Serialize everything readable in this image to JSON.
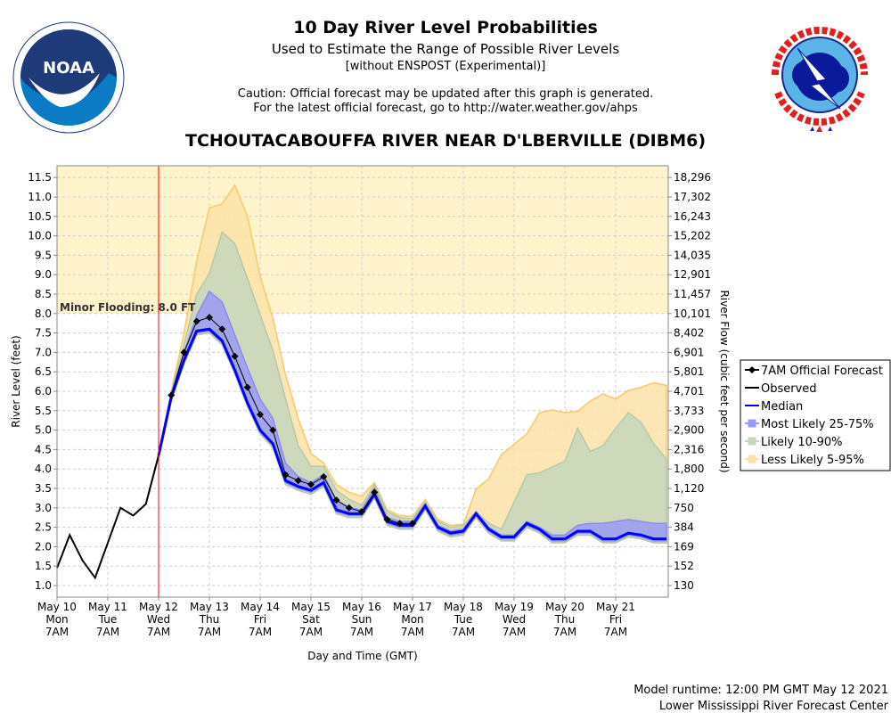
{
  "header": {
    "title": "10 Day River Level Probabilities",
    "subtitle": "Used to Estimate the Range of Possible River Levels",
    "subtitle2": "[without ENSPOST (Experimental)]",
    "caution1": "Caution: Official forecast may be updated after this graph is generated.",
    "caution2": "For the latest official forecast, go to http://water.weather.gov/ahps",
    "station": "TCHOUTACABOUFFA RIVER NEAR D'LBERVILLE (DIBM6)"
  },
  "logos": {
    "noaa": {
      "text": "NOAA",
      "ring_text": "NATIONAL OCEANIC AND ATMOSPHERIC ADMINISTRATION · U.S. DEPARTMENT OF COMMERCE"
    },
    "nws": {
      "ring_text": "NATIONAL WEATHER SERVICE"
    }
  },
  "footer": {
    "runtime": "Model runtime: 12:00 PM GMT May 12 2021",
    "center": "Lower Mississippi River Forecast Center"
  },
  "chart_data": {
    "type": "area",
    "title": "10 Day River Level Probabilities",
    "xlabel": "Day and Time (GMT)",
    "ylabel": "River Level (feet)",
    "y2label": "River Flow (cubic feet per second)",
    "ylim": [
      0.7,
      11.8
    ],
    "xlim": [
      "2021-05-10T07",
      "2021-05-22T07"
    ],
    "grid": true,
    "legend_placement": "right",
    "yticks": [
      "1.0",
      "1.5",
      "2.0",
      "2.5",
      "3.0",
      "3.5",
      "4.0",
      "4.5",
      "5.0",
      "5.5",
      "6.0",
      "6.5",
      "7.0",
      "7.5",
      "8.0",
      "8.5",
      "9.0",
      "9.5",
      "10.0",
      "10.5",
      "11.0",
      "11.5"
    ],
    "y2ticks": [
      "130",
      "152",
      "169",
      "384",
      "750",
      "1,120",
      "1,800",
      "2,316",
      "2,900",
      "3,733",
      "4,701",
      "5,801",
      "6,901",
      "8,402",
      "10,101",
      "11,457",
      "12,901",
      "14,035",
      "15,202",
      "16,243",
      "17,302",
      "18,296"
    ],
    "xticks": [
      {
        "date": "May 10",
        "day": "Mon",
        "time": "7AM"
      },
      {
        "date": "May 11",
        "day": "Tue",
        "time": "7AM"
      },
      {
        "date": "May 12",
        "day": "Wed",
        "time": "7AM"
      },
      {
        "date": "May 13",
        "day": "Thu",
        "time": "7AM"
      },
      {
        "date": "May 14",
        "day": "Fri",
        "time": "7AM"
      },
      {
        "date": "May 15",
        "day": "Sat",
        "time": "7AM"
      },
      {
        "date": "May 16",
        "day": "Sun",
        "time": "7AM"
      },
      {
        "date": "May 17",
        "day": "Mon",
        "time": "7AM"
      },
      {
        "date": "May 18",
        "day": "Tue",
        "time": "7AM"
      },
      {
        "date": "May 19",
        "day": "Wed",
        "time": "7AM"
      },
      {
        "date": "May 20",
        "day": "Thu",
        "time": "7AM"
      },
      {
        "date": "May 21",
        "day": "Fri",
        "time": "7AM"
      }
    ],
    "flood": {
      "label": "Minor Flooding: 8.0 FT",
      "stage": 8.0,
      "color": "#fff3cc"
    },
    "now_line": "2021-05-12T07",
    "legend": [
      {
        "label": "7AM Official Forecast",
        "color": "#000000",
        "kind": "diamond"
      },
      {
        "label": "Observed",
        "color": "#000000",
        "kind": "line"
      },
      {
        "label": "Median",
        "color": "#0000ff",
        "kind": "line"
      },
      {
        "label": "Most Likely 25-75%",
        "color": "#9a9af5",
        "kind": "box"
      },
      {
        "label": "Likely 10-90%",
        "color": "#c5d6bd",
        "kind": "box"
      },
      {
        "label": "Less Likely 5-95%",
        "color": "#fde2a8",
        "kind": "box"
      }
    ],
    "observed": {
      "x": [
        "2021-05-10T07",
        "2021-05-10T13",
        "2021-05-10T19",
        "2021-05-11T01",
        "2021-05-11T07",
        "2021-05-11T13",
        "2021-05-11T19",
        "2021-05-12T01",
        "2021-05-12T07"
      ],
      "y": [
        1.45,
        2.3,
        1.65,
        1.2,
        2.1,
        3.0,
        2.8,
        3.1,
        4.35
      ]
    },
    "official_forecast": {
      "x": [
        "2021-05-12T13",
        "2021-05-12T19",
        "2021-05-13T01",
        "2021-05-13T07",
        "2021-05-13T13",
        "2021-05-13T19",
        "2021-05-14T01",
        "2021-05-14T07",
        "2021-05-14T13",
        "2021-05-14T19",
        "2021-05-15T01",
        "2021-05-15T07",
        "2021-05-15T13",
        "2021-05-15T19",
        "2021-05-16T01",
        "2021-05-16T07",
        "2021-05-16T13",
        "2021-05-16T19",
        "2021-05-17T01",
        "2021-05-17T07"
      ],
      "y": [
        5.9,
        7.0,
        7.8,
        7.9,
        7.6,
        6.9,
        6.1,
        5.4,
        5.0,
        3.85,
        3.7,
        3.6,
        3.8,
        3.2,
        3.0,
        2.9,
        3.4,
        2.7,
        2.6,
        2.6
      ]
    },
    "ensemble_x": [
      "2021-05-12T07",
      "2021-05-12T13",
      "2021-05-12T19",
      "2021-05-13T01",
      "2021-05-13T07",
      "2021-05-13T13",
      "2021-05-13T19",
      "2021-05-14T01",
      "2021-05-14T07",
      "2021-05-14T13",
      "2021-05-14T19",
      "2021-05-15T01",
      "2021-05-15T07",
      "2021-05-15T13",
      "2021-05-15T19",
      "2021-05-16T01",
      "2021-05-16T07",
      "2021-05-16T13",
      "2021-05-16T19",
      "2021-05-17T01",
      "2021-05-17T07",
      "2021-05-17T13",
      "2021-05-17T19",
      "2021-05-18T01",
      "2021-05-18T07",
      "2021-05-18T13",
      "2021-05-18T19",
      "2021-05-19T01",
      "2021-05-19T07",
      "2021-05-19T13",
      "2021-05-19T19",
      "2021-05-20T01",
      "2021-05-20T07",
      "2021-05-20T13",
      "2021-05-20T19",
      "2021-05-21T01",
      "2021-05-21T07",
      "2021-05-21T13",
      "2021-05-21T19",
      "2021-05-22T01",
      "2021-05-22T07"
    ],
    "median": [
      4.35,
      5.85,
      6.8,
      7.55,
      7.6,
      7.3,
      6.55,
      5.7,
      5.0,
      4.65,
      3.7,
      3.55,
      3.45,
      3.65,
      2.95,
      2.85,
      2.85,
      3.35,
      2.65,
      2.55,
      2.55,
      3.05,
      2.5,
      2.35,
      2.4,
      2.85,
      2.45,
      2.25,
      2.25,
      2.6,
      2.45,
      2.2,
      2.2,
      2.4,
      2.4,
      2.2,
      2.2,
      2.35,
      2.3,
      2.2,
      2.2
    ],
    "p75": [
      4.35,
      5.95,
      7.0,
      7.95,
      8.57,
      8.3,
      7.45,
      6.6,
      5.8,
      5.3,
      4.15,
      3.8,
      3.65,
      3.85,
      3.2,
      3.0,
      2.95,
      3.5,
      2.75,
      2.65,
      2.65,
      3.1,
      2.55,
      2.4,
      2.45,
      2.9,
      2.5,
      2.3,
      2.3,
      2.65,
      2.5,
      2.3,
      2.3,
      2.55,
      2.6,
      2.6,
      2.65,
      2.7,
      2.65,
      2.6,
      2.6
    ],
    "p25": [
      4.3,
      5.8,
      6.75,
      7.5,
      7.55,
      7.25,
      6.5,
      5.65,
      4.95,
      4.6,
      3.65,
      3.5,
      3.4,
      3.6,
      2.9,
      2.8,
      2.8,
      3.3,
      2.6,
      2.5,
      2.5,
      3.0,
      2.45,
      2.3,
      2.35,
      2.8,
      2.4,
      2.2,
      2.2,
      2.55,
      2.4,
      2.15,
      2.15,
      2.35,
      2.35,
      2.15,
      2.15,
      2.3,
      2.25,
      2.15,
      2.15
    ],
    "p90": [
      4.35,
      6.0,
      7.2,
      8.5,
      9.03,
      10.1,
      9.8,
      8.9,
      7.97,
      7.05,
      5.8,
      4.6,
      4.07,
      4.07,
      3.45,
      3.22,
      3.07,
      3.6,
      2.9,
      2.75,
      2.72,
      3.15,
      2.65,
      2.5,
      2.55,
      2.9,
      2.6,
      2.45,
      3.15,
      3.85,
      3.9,
      4.05,
      4.2,
      5.05,
      4.45,
      4.6,
      5.05,
      5.45,
      5.2,
      4.65,
      4.25
    ],
    "p10": [
      4.25,
      5.75,
      6.7,
      7.45,
      7.5,
      7.2,
      6.45,
      5.6,
      4.9,
      4.55,
      3.6,
      3.45,
      3.35,
      3.55,
      2.85,
      2.75,
      2.75,
      3.25,
      2.55,
      2.45,
      2.45,
      2.95,
      2.4,
      2.25,
      2.3,
      2.75,
      2.35,
      2.15,
      2.15,
      2.5,
      2.35,
      2.1,
      2.1,
      2.3,
      2.3,
      2.1,
      2.1,
      2.25,
      2.2,
      2.1,
      2.1
    ],
    "p95": [
      4.35,
      6.0,
      7.5,
      9.35,
      10.72,
      10.82,
      11.3,
      10.5,
      8.95,
      7.88,
      6.43,
      5.3,
      4.4,
      4.15,
      3.6,
      3.4,
      3.3,
      3.65,
      2.95,
      2.8,
      2.78,
      3.22,
      2.7,
      2.55,
      2.58,
      3.48,
      3.75,
      4.37,
      4.64,
      4.9,
      5.45,
      5.52,
      5.45,
      5.48,
      5.75,
      5.93,
      5.8,
      6.02,
      6.1,
      6.22,
      6.15
    ],
    "p5": [
      4.25,
      5.75,
      6.7,
      7.45,
      7.5,
      7.2,
      6.45,
      5.6,
      4.9,
      4.55,
      3.6,
      3.45,
      3.35,
      3.55,
      2.85,
      2.75,
      2.75,
      3.25,
      2.55,
      2.45,
      2.45,
      2.95,
      2.4,
      2.25,
      2.3,
      2.75,
      2.35,
      2.15,
      2.15,
      2.5,
      2.35,
      2.1,
      2.1,
      2.3,
      2.3,
      2.1,
      2.1,
      2.25,
      2.2,
      2.1,
      2.1
    ]
  }
}
